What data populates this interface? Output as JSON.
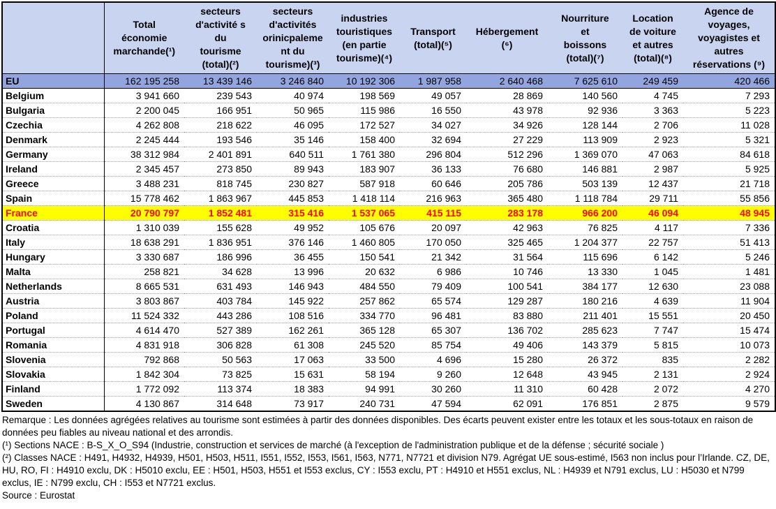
{
  "colors": {
    "header_bg": "#c8d4f0",
    "eu_row_bg": "#93a5de",
    "highlight_bg": "#ffff00",
    "highlight_text": "#ff0000",
    "border": "#000000"
  },
  "table": {
    "columns": [
      {
        "header": "Total\néconomie\nmarchande(¹)"
      },
      {
        "header": "secteurs\nd'activité s\ndu\ntourisme\n(total)(²)"
      },
      {
        "header": "secteurs\nd'activités\norinicpaleme\nnt du\ntourisme)(³)"
      },
      {
        "header": "industries\ntouristiques\n(en partie\ntourisme)(⁴)"
      },
      {
        "header": "Transport\n(total)(⁵)"
      },
      {
        "header": "Hébergement\n(⁶)"
      },
      {
        "header": "Nourriture\net\nboissons\n(total)(⁷)"
      },
      {
        "header": "Location\nde voiture\net autres\n(total)(⁸)"
      },
      {
        "header": "Agence de\nvoyages,\nvoyagistes et\nautres\nréservations (⁹)"
      }
    ],
    "eu_row": {
      "label": "EU",
      "values": [
        "162 195 258",
        "13 439 146",
        "3 246 840",
        "10 192 306",
        "1 987 958",
        "2 640 468",
        "7 625 610",
        "249 459",
        "420 466"
      ]
    },
    "rows": [
      {
        "name": "Belgium",
        "highlight": false,
        "values": [
          "3 941 660",
          "239 543",
          "40 974",
          "198 569",
          "49 057",
          "28 869",
          "140 560",
          "4 745",
          "7 293"
        ]
      },
      {
        "name": "Bulgaria",
        "highlight": false,
        "values": [
          "2 200 045",
          "166 951",
          "50 965",
          "115 986",
          "16 550",
          "43 978",
          "92 936",
          "3 363",
          "5 223"
        ]
      },
      {
        "name": "Czechia",
        "highlight": false,
        "values": [
          "4 262 808",
          "218 622",
          "46 095",
          "172 527",
          "34 027",
          "34 926",
          "128 144",
          "2 706",
          "11 028"
        ]
      },
      {
        "name": "Denmark",
        "highlight": false,
        "values": [
          "2 245 444",
          "193 546",
          "35 146",
          "158 400",
          "32 694",
          "27 229",
          "113 909",
          "2 923",
          "5 321"
        ]
      },
      {
        "name": "Germany",
        "highlight": false,
        "values": [
          "38 312 984",
          "2 401 891",
          "640 511",
          "1 761 380",
          "296 804",
          "512 296",
          "1 369 070",
          "47 063",
          "84 618"
        ]
      },
      {
        "name": "Ireland",
        "highlight": false,
        "values": [
          "2 345 457",
          "273 850",
          "89 943",
          "183 907",
          "36 133",
          "76 680",
          "146 881",
          "2 987",
          "5 925"
        ]
      },
      {
        "name": "Greece",
        "highlight": false,
        "values": [
          "3 488 231",
          "818 745",
          "230 827",
          "587 918",
          "60 646",
          "205 786",
          "503 139",
          "12 437",
          "21 718"
        ]
      },
      {
        "name": "Spain",
        "highlight": false,
        "values": [
          "15 778 462",
          "1 863 967",
          "445 853",
          "1 418 114",
          "216 963",
          "365 480",
          "1 118 784",
          "29 711",
          "55 856"
        ]
      },
      {
        "name": "France",
        "highlight": true,
        "values": [
          "20 790 797",
          "1 852 481",
          "315 416",
          "1 537 065",
          "415 115",
          "283 178",
          "966 200",
          "46 094",
          "48 945"
        ]
      },
      {
        "name": "Croatia",
        "highlight": false,
        "values": [
          "1 310 039",
          "155 628",
          "49 952",
          "105 676",
          "20 097",
          "42 963",
          "76 825",
          "4 117",
          "7 336"
        ]
      },
      {
        "name": "Italy",
        "highlight": false,
        "values": [
          "18 638 291",
          "1 836 951",
          "376 146",
          "1 460 805",
          "170 050",
          "325 465",
          "1 204 377",
          "22 757",
          "51 413"
        ]
      },
      {
        "name": "Hungary",
        "highlight": false,
        "values": [
          "3 330 687",
          "186 996",
          "36 455",
          "150 541",
          "21 342",
          "31 564",
          "115 696",
          "6 142",
          "5 246"
        ]
      },
      {
        "name": "Malta",
        "highlight": false,
        "values": [
          "258 821",
          "34 628",
          "13 996",
          "20 632",
          "6 986",
          "10 746",
          "13 330",
          "1 045",
          "1 481"
        ]
      },
      {
        "name": "Netherlands",
        "highlight": false,
        "values": [
          "8 665 531",
          "631 493",
          "146 943",
          "484 550",
          "79 409",
          "100 541",
          "384 177",
          "12 630",
          "23 088"
        ]
      },
      {
        "name": "Austria",
        "highlight": false,
        "values": [
          "3 803 867",
          "403 784",
          "145 922",
          "257 862",
          "65 574",
          "129 287",
          "180 216",
          "4 639",
          "11 904"
        ]
      },
      {
        "name": "Poland",
        "highlight": false,
        "values": [
          "11 524 332",
          "443 286",
          "108 516",
          "334 770",
          "96 481",
          "83 880",
          "211 401",
          "15 551",
          "20 450"
        ]
      },
      {
        "name": "Portugal",
        "highlight": false,
        "values": [
          "4 614 470",
          "527 389",
          "162 261",
          "365 128",
          "65 307",
          "136 702",
          "285 623",
          "7 747",
          "15 474"
        ]
      },
      {
        "name": "Romania",
        "highlight": false,
        "values": [
          "4 831 918",
          "306 828",
          "61 308",
          "245 520",
          "85 754",
          "49 406",
          "143 379",
          "5 815",
          "10 073"
        ]
      },
      {
        "name": "Slovenia",
        "highlight": false,
        "values": [
          "792 868",
          "50 563",
          "17 063",
          "33 500",
          "4 696",
          "15 280",
          "26 372",
          "835",
          "2 282"
        ]
      },
      {
        "name": "Slovakia",
        "highlight": false,
        "values": [
          "1 842 304",
          "73 825",
          "15 631",
          "58 194",
          "9 260",
          "12 648",
          "43 945",
          "2 131",
          "2 924"
        ]
      },
      {
        "name": "Finland",
        "highlight": false,
        "values": [
          "1 772 092",
          "113 374",
          "18 383",
          "94 991",
          "30 260",
          "11 310",
          "60 428",
          "2 072",
          "4 270"
        ]
      },
      {
        "name": "Sweden",
        "highlight": false,
        "values": [
          "4 130 867",
          "314 648",
          "73 917",
          "240 731",
          "47 594",
          "62 091",
          "176 851",
          "2 875",
          "9 579"
        ]
      }
    ]
  },
  "notes": {
    "remarque": "Remarque : Les données agrégées relatives au tourisme sont estimées à partir des données disponibles. Des écarts peuvent exister entre les totaux et les sous-totaux en raison de données peu fiables au niveau national et des arrondis.",
    "note1": "(¹) Sections NACE : B-S_X_O_S94 (Industrie, construction et services de marché (à l'exception de l'administration publique et de la défense ; sécurité sociale )",
    "note2": "(²) Classes NACE : H491, H4932, H4939, H501, H503, H511, I551, I552, I553, I561, I563, N771, N7721 et division N79. Agrégat UE sous-estimé, I563 non inclus pour l’Irlande. CZ, DE, HU, RO, FI : H4910 exclu, DK : H5010 exclu, EE : H501, H503, H551 et I553 exclus, CY : I553 exclu, PT : H4910 et H551 exclus, NL : H4939 et N791 exclus, LU : H5030 et N799 exclus, IE : N799 exclu, CH : I553 et N7721 exclus.",
    "source": "Source : Eurostat"
  }
}
